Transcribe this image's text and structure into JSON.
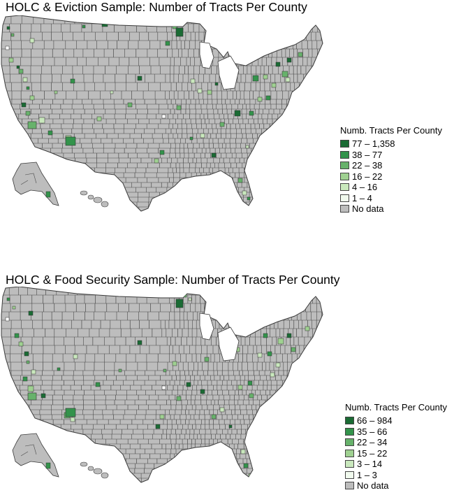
{
  "colors": {
    "no_data": "#bdbdbd",
    "border": "#3a3a3a",
    "water": "#ffffff"
  },
  "maps": [
    {
      "id": "eviction",
      "title": "HOLC & Eviction Sample: Number of Tracts Per County",
      "legend": {
        "title": "Numb. Tracts Per County",
        "items": [
          {
            "label": "77 – 1,358",
            "color": "#1a6b34"
          },
          {
            "label": "38 – 77",
            "color": "#33934b"
          },
          {
            "label": "22 – 38",
            "color": "#67b26b"
          },
          {
            "label": "16 – 22",
            "color": "#9fd191"
          },
          {
            "label": "4 – 16",
            "color": "#c9e8bd"
          },
          {
            "label": "1 – 4",
            "color": "#f1faee"
          },
          {
            "label": "No data",
            "color": "#bdbdbd"
          }
        ]
      }
    },
    {
      "id": "food",
      "title": "HOLC & Food Security Sample: Number of Tracts Per County",
      "legend": {
        "title": "Numb. Tracts Per County",
        "items": [
          {
            "label": "66 – 984",
            "color": "#1a6b34"
          },
          {
            "label": "35 – 66",
            "color": "#33934b"
          },
          {
            "label": "22 – 34",
            "color": "#67b26b"
          },
          {
            "label": "15 – 22",
            "color": "#9fd191"
          },
          {
            "label": "3 – 14",
            "color": "#c9e8bd"
          },
          {
            "label": "1 – 3",
            "color": "#f1faee"
          },
          {
            "label": "No data",
            "color": "#bdbdbd"
          }
        ]
      }
    }
  ]
}
